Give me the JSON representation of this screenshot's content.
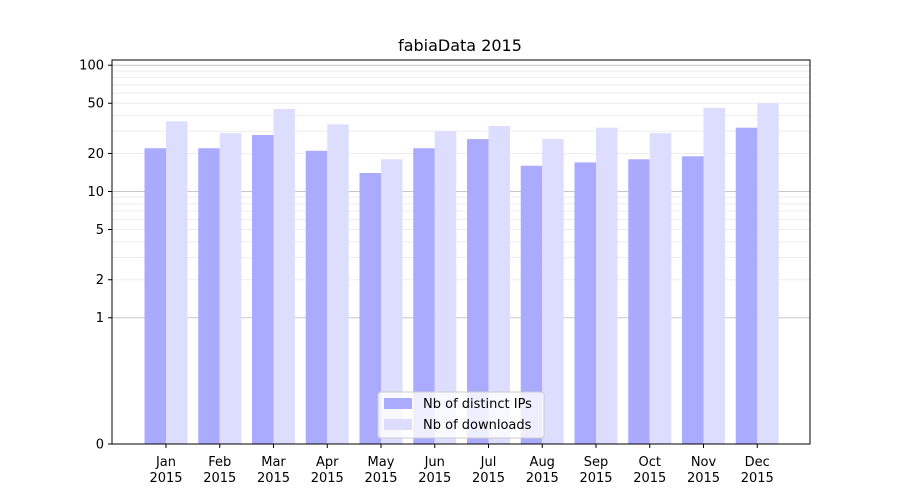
{
  "chart_data": {
    "type": "bar",
    "title": "fabiaData 2015",
    "categories": [
      [
        "Jan",
        "2015"
      ],
      [
        "Feb",
        "2015"
      ],
      [
        "Mar",
        "2015"
      ],
      [
        "Apr",
        "2015"
      ],
      [
        "May",
        "2015"
      ],
      [
        "Jun",
        "2015"
      ],
      [
        "Jul",
        "2015"
      ],
      [
        "Aug",
        "2015"
      ],
      [
        "Sep",
        "2015"
      ],
      [
        "Oct",
        "2015"
      ],
      [
        "Nov",
        "2015"
      ],
      [
        "Dec",
        "2015"
      ]
    ],
    "series": [
      {
        "name": "Nb of distinct IPs",
        "color": "#aaaaff",
        "values": [
          22,
          22,
          28,
          21,
          14,
          22,
          26,
          16,
          17,
          18,
          19,
          32
        ]
      },
      {
        "name": "Nb of downloads",
        "color": "#ddddff",
        "values": [
          36,
          29,
          45,
          34,
          18,
          30,
          33,
          26,
          32,
          29,
          46,
          50
        ]
      }
    ],
    "yscale": "symlog",
    "ylim": [
      0,
      110
    ],
    "yticks": [
      0,
      1,
      2,
      5,
      10,
      20,
      50,
      100
    ],
    "ytick_labels": [
      "0",
      "1",
      "2",
      "5",
      "10",
      "20",
      "50",
      "100"
    ],
    "grid": "horizontal",
    "legend_position": "bottom-center"
  }
}
